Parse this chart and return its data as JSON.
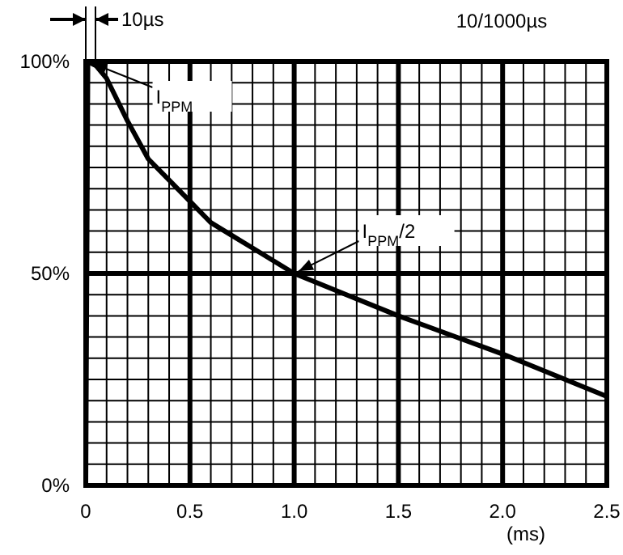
{
  "chart_data": {
    "type": "line",
    "title": "10/1000µs",
    "xlabel": "(ms)",
    "x": [
      0,
      0.01,
      0.05,
      0.1,
      0.2,
      0.3,
      0.4,
      0.5,
      0.6,
      0.7,
      0.8,
      0.9,
      1.0,
      1.25,
      1.5,
      1.75,
      2.0,
      2.25,
      2.5
    ],
    "series": [
      {
        "color": "#000000",
        "values": [
          0,
          100,
          99,
          96,
          86,
          77,
          72,
          67,
          62,
          59,
          56,
          53,
          50,
          45,
          40,
          35.5,
          31,
          26,
          21
        ]
      }
    ],
    "xlim": [
      0,
      2.5
    ],
    "xticks": [
      {
        "value": 0,
        "label": "0"
      },
      {
        "value": 0.1,
        "label": null
      },
      {
        "value": 0.2,
        "label": null
      },
      {
        "value": 0.3,
        "label": null
      },
      {
        "value": 0.4,
        "label": null
      },
      {
        "value": 0.5,
        "label": "0.5"
      },
      {
        "value": 0.6,
        "label": null
      },
      {
        "value": 0.7,
        "label": null
      },
      {
        "value": 0.8,
        "label": null
      },
      {
        "value": 0.9,
        "label": null
      },
      {
        "value": 1,
        "label": "1.0"
      },
      {
        "value": 1.1,
        "label": null
      },
      {
        "value": 1.2,
        "label": null
      },
      {
        "value": 1.3,
        "label": null
      },
      {
        "value": 1.4,
        "label": null
      },
      {
        "value": 1.5,
        "label": "1.5"
      },
      {
        "value": 1.6,
        "label": null
      },
      {
        "value": 1.7,
        "label": null
      },
      {
        "value": 1.8,
        "label": null
      },
      {
        "value": 1.9,
        "label": null
      },
      {
        "value": 2,
        "label": "2.0"
      },
      {
        "value": 2.1,
        "label": null
      },
      {
        "value": 2.2,
        "label": null
      },
      {
        "value": 2.3,
        "label": null
      },
      {
        "value": 2.4,
        "label": null
      },
      {
        "value": 2.5,
        "label": "2.5"
      }
    ],
    "ylim": [
      0,
      100
    ],
    "yticks": [
      {
        "value": 0,
        "label": "0%"
      },
      {
        "value": 5,
        "label": null
      },
      {
        "value": 10,
        "label": null
      },
      {
        "value": 15,
        "label": null
      },
      {
        "value": 20,
        "label": null
      },
      {
        "value": 25,
        "label": null
      },
      {
        "value": 30,
        "label": null
      },
      {
        "value": 35,
        "label": null
      },
      {
        "value": 40,
        "label": null
      },
      {
        "value": 45,
        "label": null
      },
      {
        "value": 50,
        "label": "50%"
      },
      {
        "value": 55,
        "label": null
      },
      {
        "value": 60,
        "label": null
      },
      {
        "value": 65,
        "label": null
      },
      {
        "value": 70,
        "label": null
      },
      {
        "value": 75,
        "label": null
      },
      {
        "value": 80,
        "label": null
      },
      {
        "value": 85,
        "label": null
      },
      {
        "value": 90,
        "label": null
      },
      {
        "value": 95,
        "label": null
      },
      {
        "value": 100,
        "label": "100%"
      }
    ],
    "grid": true,
    "line_style": "solid",
    "marker": "none",
    "annotations": [
      "10µs",
      {
        "text": "I$_{PPM}$",
        "x": 0.01,
        "y": 100
      },
      {
        "text": "I$_{PPM}$/2",
        "x": 1.0,
        "y": 50
      }
    ]
  }
}
